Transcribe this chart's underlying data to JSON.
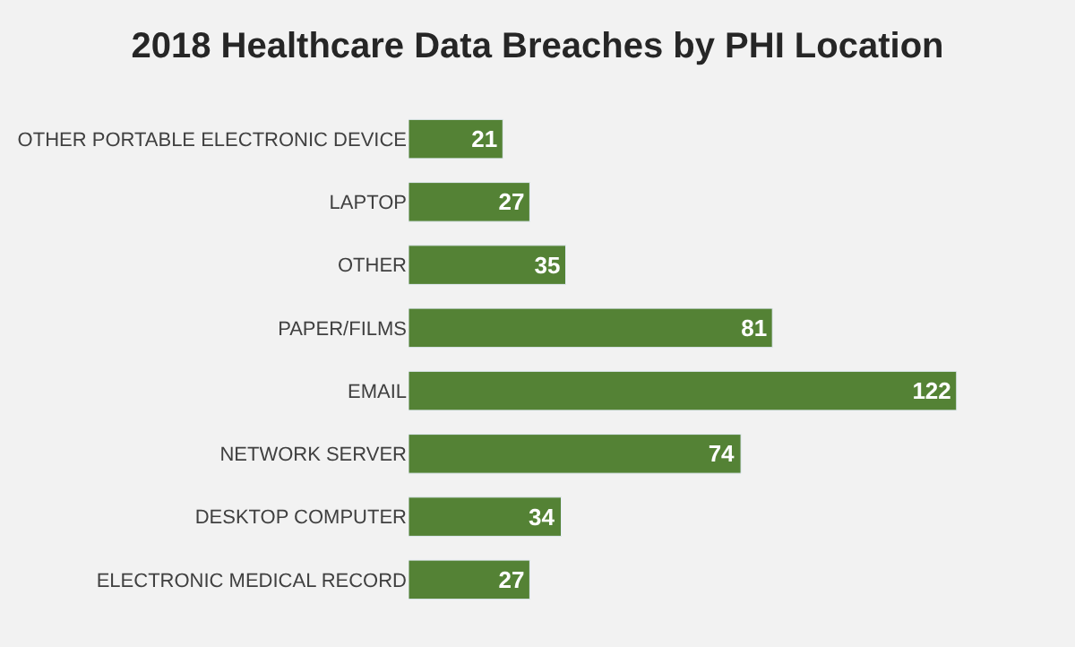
{
  "chart_data": {
    "type": "bar",
    "orientation": "horizontal",
    "title": "2018 Healthcare Data Breaches by PHI Location",
    "categories": [
      "OTHER PORTABLE ELECTRONIC DEVICE",
      "LAPTOP",
      "OTHER",
      "PAPER/FILMS",
      "EMAIL",
      "NETWORK SERVER",
      "DESKTOP COMPUTER",
      "ELECTRONIC MEDICAL RECORD"
    ],
    "values": [
      21,
      27,
      35,
      81,
      122,
      74,
      34,
      27
    ],
    "color": "#548235",
    "data_labels": true,
    "grid": false,
    "legend": false,
    "tick_labels": "y"
  }
}
